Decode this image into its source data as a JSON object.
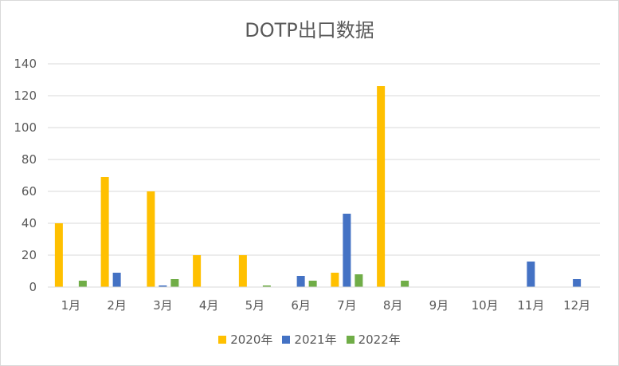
{
  "chart_data": {
    "type": "bar",
    "title": "DOTP出口数据",
    "xlabel": "",
    "ylabel": "",
    "categories": [
      "1月",
      "2月",
      "3月",
      "4月",
      "5月",
      "6月",
      "7月",
      "8月",
      "9月",
      "10月",
      "11月",
      "12月"
    ],
    "series": [
      {
        "name": "2020年",
        "color": "#ffc000",
        "values": [
          40,
          69,
          60,
          20,
          20,
          0,
          9,
          126,
          0,
          0,
          0,
          0
        ]
      },
      {
        "name": "2021年",
        "color": "#4472c4",
        "values": [
          0,
          9,
          1,
          0,
          0,
          7,
          46,
          0,
          0,
          0,
          16,
          5
        ]
      },
      {
        "name": "2022年",
        "color": "#70ad47",
        "values": [
          4,
          0,
          5,
          0,
          1,
          4,
          8,
          4,
          0,
          0,
          0,
          0
        ]
      }
    ],
    "ylim": [
      0,
      140
    ],
    "yticks": [
      0,
      20,
      40,
      60,
      80,
      100,
      120,
      140
    ],
    "grid": true,
    "legend": "bottom"
  }
}
